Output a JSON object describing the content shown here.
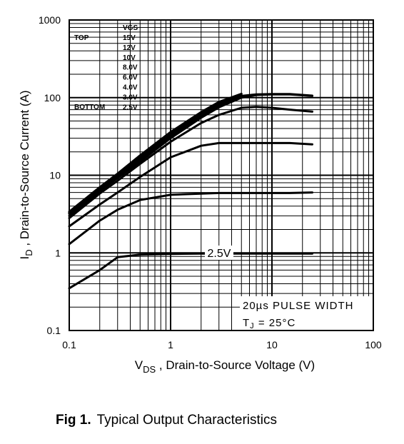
{
  "chart_data": {
    "type": "line",
    "x_label": {
      "main": "V",
      "sub": "DS",
      "rest": " , Drain-to-Source Voltage (V)"
    },
    "y_label": {
      "main": "I",
      "sub": "D",
      "rest": " , Drain-to-Source Current (A)"
    },
    "x": [
      0.1,
      0.2,
      0.3,
      0.5,
      1,
      2,
      3,
      5,
      7,
      10,
      15,
      25
    ],
    "series": [
      {
        "name": "15V",
        "color": "#000000",
        "values": [
          3.4,
          7,
          10.5,
          18,
          36,
          65,
          88,
          112,
          null,
          null,
          null,
          null
        ]
      },
      {
        "name": "12V",
        "color": "#000000",
        "values": [
          3.3,
          6.8,
          10,
          17,
          34,
          62,
          84,
          108,
          null,
          null,
          null,
          null
        ]
      },
      {
        "name": "10V",
        "color": "#000000",
        "values": [
          3.2,
          6.5,
          9.7,
          16,
          32,
          58,
          80,
          105,
          110,
          111,
          111,
          106
        ]
      },
      {
        "name": "8.0V",
        "color": "#000000",
        "values": [
          3.0,
          6.2,
          9.2,
          15,
          30,
          55,
          75,
          100,
          108,
          110,
          110,
          105
        ]
      },
      {
        "name": "6.0V",
        "color": "#000000",
        "values": [
          2.8,
          5.8,
          8.5,
          14,
          27,
          47,
          60,
          74,
          76,
          74,
          70,
          66
        ]
      },
      {
        "name": "4.0V",
        "color": "#000000",
        "values": [
          2.2,
          4.2,
          6,
          9.5,
          17,
          24,
          26,
          26,
          26,
          26,
          26,
          25
        ]
      },
      {
        "name": "3.0V",
        "color": "#000000",
        "values": [
          1.3,
          2.6,
          3.6,
          4.8,
          5.6,
          5.8,
          5.9,
          5.9,
          5.9,
          5.9,
          5.9,
          6.0
        ]
      },
      {
        "name": "2.5V",
        "color": "#000000",
        "values": [
          0.35,
          0.6,
          0.88,
          0.95,
          0.97,
          0.98,
          0.98,
          0.98,
          0.98,
          0.98,
          0.98,
          0.98
        ]
      }
    ],
    "legend": {
      "title": "VGS",
      "top": "TOP",
      "bottom": "BOTTOM"
    },
    "annotations": {
      "curve_label": "2.5V",
      "pulse": "20µs PULSE WIDTH",
      "tj": {
        "main": "T",
        "sub": "J",
        "rest": " = 25°C"
      }
    },
    "xlim": [
      0.1,
      100
    ],
    "ylim": [
      0.1,
      1000
    ],
    "xticks": [
      0.1,
      1,
      10,
      100
    ],
    "yticks": [
      0.1,
      1,
      10,
      100,
      1000
    ],
    "log_x": true,
    "log_y": true,
    "grid": true
  },
  "caption": {
    "label": "Fig 1.",
    "text": "Typical Output Characteristics"
  }
}
